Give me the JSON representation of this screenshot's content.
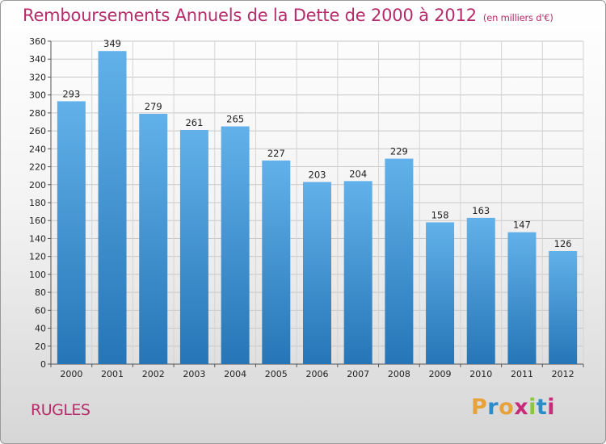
{
  "title": "Remboursements Annuels de la Dette de 2000 à 2012",
  "unit": "(en milliers d'€)",
  "town": "RUGLES",
  "logo": {
    "text": "Proxiti",
    "colors": [
      "#e8a23a",
      "#2a8cc9",
      "#e8a23a",
      "#c72c7a",
      "#8cc63f",
      "#2a8cc9",
      "#c72c7a"
    ]
  },
  "colors": {
    "accent": "#b52c6a",
    "bar_top": "#62b1ea",
    "bar_bottom": "#2675b6"
  },
  "chart_data": {
    "type": "bar",
    "categories": [
      "2000",
      "2001",
      "2002",
      "2003",
      "2004",
      "2005",
      "2006",
      "2007",
      "2008",
      "2009",
      "2010",
      "2011",
      "2012"
    ],
    "values": [
      293,
      349,
      279,
      261,
      265,
      227,
      203,
      204,
      229,
      158,
      163,
      147,
      126
    ],
    "ylim": [
      0,
      360
    ],
    "ytick_step": 20,
    "grid": true,
    "xlabel": "",
    "ylabel": ""
  }
}
